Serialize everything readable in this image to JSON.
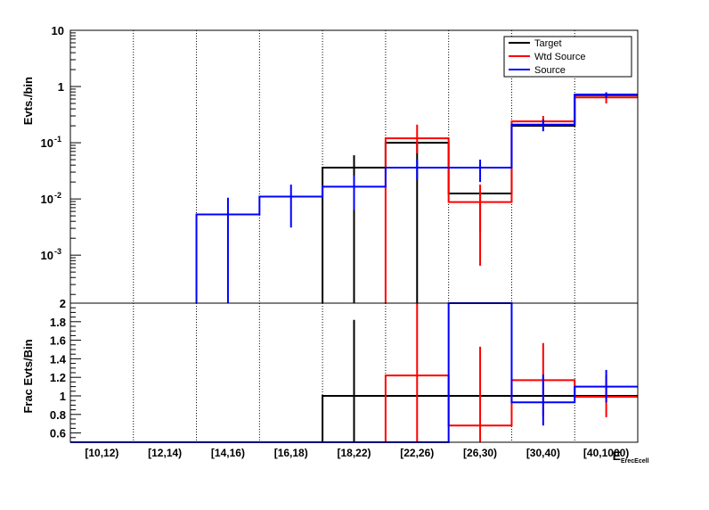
{
  "chart_data": [
    {
      "type": "line",
      "style": "step-histogram",
      "ylabel": "Evts./bin",
      "yscale": "log",
      "ylim": [
        0.00014,
        10
      ],
      "ytick_labels": [
        {
          "v": 0.001,
          "base": "10",
          "exp": "-3"
        },
        {
          "v": 0.01,
          "base": "10",
          "exp": "-2"
        },
        {
          "v": 0.1,
          "base": "10",
          "exp": "-1"
        },
        {
          "v": 1,
          "base": "1",
          "exp": ""
        },
        {
          "v": 10,
          "base": "10",
          "exp": ""
        }
      ],
      "categories": [
        "[10,12)",
        "[12,14)",
        "[14,16)",
        "[16,18)",
        "[18,22)",
        "[22,26)",
        "[26,30)",
        "[30,40)",
        "[40,1000)"
      ],
      "series": [
        {
          "name": "Target",
          "color": "#000000",
          "values": [
            null,
            null,
            null,
            null,
            0.036,
            0.1,
            0.0125,
            0.2,
            0.7
          ],
          "err_lo": [
            null,
            null,
            null,
            null,
            0.00014,
            0.00014,
            0.0025,
            0.2,
            0.7
          ],
          "err_hi": [
            null,
            null,
            null,
            null,
            0.06,
            0.1,
            0.0125,
            0.2,
            0.7
          ]
        },
        {
          "name": "Wtd Source",
          "color": "#ff0000",
          "values": [
            null,
            null,
            null,
            null,
            null,
            0.12,
            0.0088,
            0.24,
            0.64
          ],
          "err_lo": [
            null,
            null,
            null,
            null,
            null,
            0.065,
            0.00065,
            0.19,
            0.5
          ],
          "err_hi": [
            null,
            null,
            null,
            null,
            null,
            0.21,
            0.018,
            0.3,
            0.78
          ]
        },
        {
          "name": "Source",
          "color": "#0000ff",
          "values": [
            null,
            null,
            0.0053,
            0.011,
            0.0165,
            0.036,
            0.036,
            0.21,
            0.72
          ],
          "err_lo": [
            null,
            null,
            0.00014,
            0.0031,
            0.0064,
            0.022,
            0.02,
            0.16,
            0.62
          ],
          "err_hi": [
            null,
            null,
            0.0105,
            0.018,
            0.026,
            0.05,
            0.05,
            0.26,
            0.79
          ]
        }
      ]
    },
    {
      "type": "line",
      "style": "step-histogram",
      "ylabel": "Frac Evts/Bin",
      "xlabel": "E",
      "xlabel_tail": "ErecEcell",
      "ylim": [
        0.5,
        2
      ],
      "yticks": [
        0.6,
        0.8,
        1,
        1.2,
        1.4,
        1.6,
        1.8,
        2
      ],
      "ytick_labels": [
        "0.6",
        "0.8",
        "1",
        "1.2",
        "1.4",
        "1.6",
        "1.8",
        "2"
      ],
      "categories": [
        "[10,12)",
        "[12,14)",
        "[14,16)",
        "[16,18)",
        "[18,22)",
        "[22,26)",
        "[26,30)",
        "[30,40)",
        "[40,1000)"
      ],
      "series": [
        {
          "name": "Target",
          "color": "#000000",
          "values": [
            0.5,
            0.5,
            0.5,
            0.5,
            1.0,
            1.0,
            1.0,
            1.0,
            1.0
          ],
          "err_lo": [
            null,
            null,
            null,
            null,
            0.5,
            null,
            null,
            null,
            null
          ],
          "err_hi": [
            null,
            null,
            null,
            null,
            1.82,
            null,
            null,
            null,
            null
          ]
        },
        {
          "name": "Wtd Source",
          "color": "#ff0000",
          "values": [
            0.5,
            0.5,
            0.5,
            0.5,
            0.5,
            1.22,
            0.68,
            1.17,
            0.99
          ],
          "err_lo": [
            null,
            null,
            null,
            null,
            null,
            0.5,
            0.5,
            0.78,
            0.77
          ],
          "err_hi": [
            null,
            null,
            null,
            null,
            null,
            2.0,
            1.53,
            1.57,
            1.22
          ]
        },
        {
          "name": "Source",
          "color": "#0000ff",
          "values": [
            0.5,
            0.5,
            0.5,
            0.5,
            0.5,
            0.5,
            2.0,
            0.93,
            1.1
          ],
          "err_lo": [
            null,
            null,
            null,
            null,
            null,
            null,
            null,
            0.68,
            0.93
          ],
          "err_hi": [
            null,
            null,
            null,
            null,
            null,
            null,
            null,
            1.23,
            1.28
          ]
        }
      ]
    }
  ],
  "legend": {
    "position": "top-right",
    "entries": [
      {
        "label": "Target",
        "color": "#000000"
      },
      {
        "label": "Wtd Source",
        "color": "#ff0000"
      },
      {
        "label": "Source",
        "color": "#0000ff"
      }
    ]
  }
}
